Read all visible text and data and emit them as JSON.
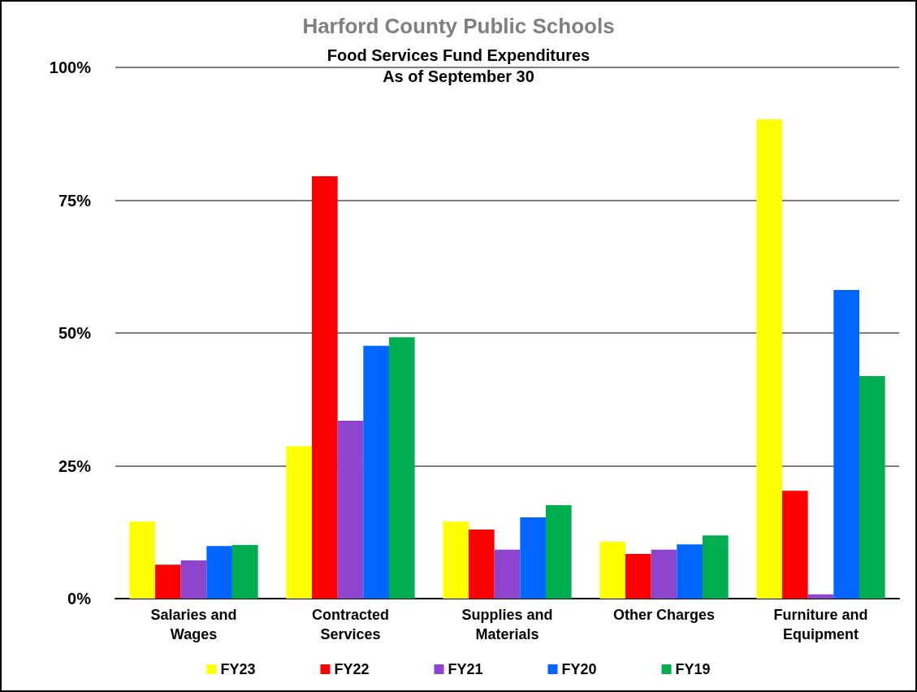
{
  "chart_data": {
    "type": "bar",
    "title": "Harford County Public Schools",
    "subtitle": "Food Services Fund Expenditures\nAs of September 30",
    "categories": [
      "Salaries and\nWages",
      "Contracted\nServices",
      "Supplies and\nMaterials",
      "Other Charges",
      "Furniture and\nEquipment"
    ],
    "series": [
      {
        "name": "FY23",
        "color": "#ffff00",
        "values": [
          14.5,
          28.7,
          14.5,
          10.7,
          90.2
        ]
      },
      {
        "name": "FY22",
        "color": "#ff0000",
        "values": [
          6.4,
          79.5,
          13.0,
          8.4,
          20.3
        ]
      },
      {
        "name": "FY21",
        "color": "#8e44cc",
        "values": [
          7.2,
          33.5,
          9.2,
          9.2,
          0.8
        ]
      },
      {
        "name": "FY20",
        "color": "#0066ff",
        "values": [
          9.9,
          47.6,
          15.3,
          10.2,
          58.1
        ]
      },
      {
        "name": "FY19",
        "color": "#00b050",
        "values": [
          10.1,
          49.2,
          17.6,
          11.9,
          41.9
        ]
      }
    ],
    "ylim": [
      0,
      100
    ],
    "yticks": [
      {
        "value": 0,
        "label": "0%"
      },
      {
        "value": 25,
        "label": "25%"
      },
      {
        "value": 50,
        "label": "50%"
      },
      {
        "value": 75,
        "label": "75%"
      },
      {
        "value": 100,
        "label": "100%"
      }
    ],
    "grid": "y",
    "legend": "bottom"
  }
}
